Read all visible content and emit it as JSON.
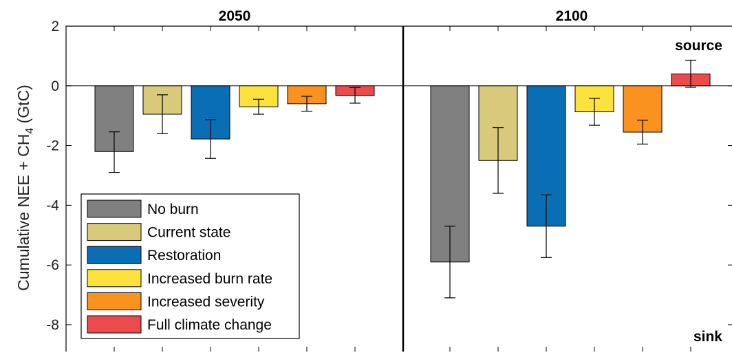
{
  "chart_data": {
    "type": "bar",
    "title": "",
    "xlabel": "",
    "ylabel": {
      "prefix": "Cumulative NEE + CH",
      "subscript": "4",
      "unit": " (GtC)"
    },
    "ylim": [
      -8.9,
      2
    ],
    "yticks": [
      2,
      0,
      -2,
      -4,
      -6,
      -8
    ],
    "ytick_labels": [
      "2",
      "0",
      "-2",
      "-4",
      "-6",
      "-8"
    ],
    "grid": false,
    "legend_position": "bottom-left",
    "annotations": {
      "source": "source",
      "sink": "sink"
    },
    "panels": [
      {
        "title": "2050",
        "values": [
          -2.2,
          -0.95,
          -1.78,
          -0.7,
          -0.6,
          -0.32
        ],
        "error_low": [
          -2.9,
          -1.6,
          -2.43,
          -0.95,
          -0.85,
          -0.58
        ],
        "error_high": [
          -1.54,
          -0.3,
          -1.13,
          -0.45,
          -0.35,
          -0.06
        ]
      },
      {
        "title": "2100",
        "values": [
          -5.9,
          -2.5,
          -4.7,
          -0.87,
          -1.55,
          0.4
        ],
        "error_low": [
          -7.1,
          -3.6,
          -5.75,
          -1.32,
          -1.95,
          -0.05
        ],
        "error_high": [
          -4.7,
          -1.4,
          -3.65,
          -0.42,
          -1.15,
          0.86
        ]
      }
    ],
    "series": [
      {
        "name": "No burn",
        "color": "#808080"
      },
      {
        "name": "Current state",
        "color": "#d9c97a"
      },
      {
        "name": "Restoration",
        "color": "#0a6eb4"
      },
      {
        "name": "Increased burn rate",
        "color": "#fde13c"
      },
      {
        "name": "Increased severity",
        "color": "#f9921e"
      },
      {
        "name": "Full climate change",
        "color": "#ec4b4c"
      }
    ]
  }
}
